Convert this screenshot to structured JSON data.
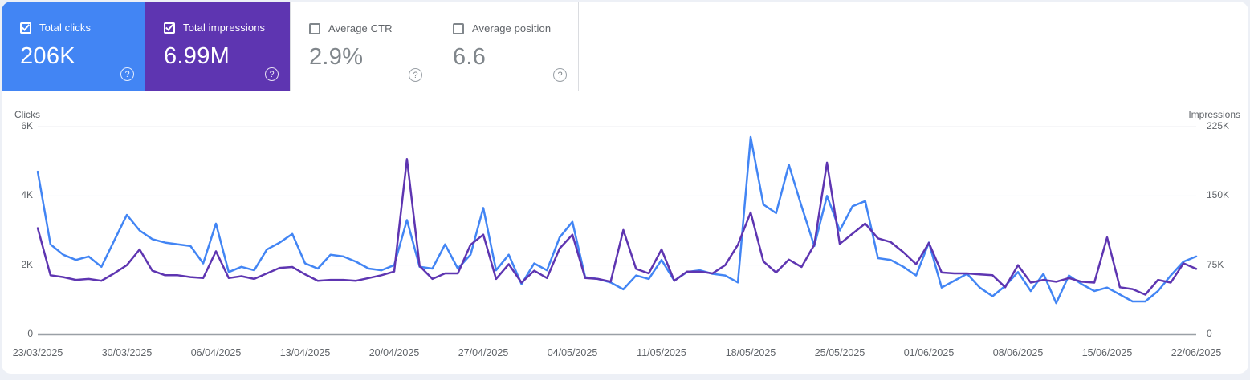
{
  "cards": [
    {
      "label": "Total clicks",
      "value": "206K",
      "checked": true,
      "bg": "#4285f4",
      "text_color": "#ffffff"
    },
    {
      "label": "Total impressions",
      "value": "6.99M",
      "checked": true,
      "bg": "#5e35b1",
      "text_color": "#ffffff"
    },
    {
      "label": "Average CTR",
      "value": "2.9%",
      "checked": false,
      "bg": "#ffffff",
      "text_color": "#80868b"
    },
    {
      "label": "Average position",
      "value": "6.6",
      "checked": false,
      "bg": "#ffffff",
      "text_color": "#80868b"
    }
  ],
  "icons": {
    "help": "?"
  },
  "chart_data": {
    "type": "line",
    "n_points": 92,
    "x_tick_every": 7,
    "x_tick_labels": [
      "23/03/2025",
      "30/03/2025",
      "06/04/2025",
      "13/04/2025",
      "20/04/2025",
      "27/04/2025",
      "04/05/2025",
      "11/05/2025",
      "18/05/2025",
      "25/05/2025",
      "01/06/2025",
      "08/06/2025",
      "15/06/2025",
      "22/06/2025"
    ],
    "left_axis": {
      "title": "Clicks",
      "tick_labels": [
        "6K",
        "4K",
        "2K",
        "0"
      ],
      "range": [
        0,
        6000
      ]
    },
    "right_axis": {
      "title": "Impressions",
      "tick_labels": [
        "225K",
        "150K",
        "75K",
        "0"
      ],
      "range": [
        0,
        225000
      ]
    },
    "grid": "horizontal",
    "legend": "none",
    "series": [
      {
        "name": "Clicks",
        "axis": "left",
        "color": "#4285f4",
        "values": [
          4700,
          2600,
          2300,
          2150,
          2250,
          1950,
          2700,
          3450,
          3000,
          2750,
          2650,
          2600,
          2550,
          2050,
          3200,
          1800,
          1950,
          1850,
          2450,
          2650,
          2900,
          2050,
          1900,
          2300,
          2250,
          2100,
          1900,
          1850,
          2000,
          3300,
          1950,
          1900,
          2600,
          1900,
          2300,
          3650,
          1850,
          2300,
          1450,
          2050,
          1850,
          2800,
          3250,
          1650,
          1600,
          1500,
          1300,
          1700,
          1600,
          2150,
          1550,
          1800,
          1850,
          1750,
          1700,
          1500,
          5700,
          3750,
          3500,
          4900,
          3700,
          2550,
          4000,
          3000,
          3700,
          3850,
          2200,
          2150,
          1950,
          1700,
          2650,
          1350,
          1550,
          1750,
          1350,
          1100,
          1400,
          1800,
          1250,
          1750,
          900,
          1700,
          1450,
          1250,
          1350,
          1150,
          950,
          950,
          1250,
          1700,
          2100,
          2250
        ]
      },
      {
        "name": "Impressions",
        "axis": "right",
        "color": "#5e35b1",
        "values": [
          115000,
          64000,
          62000,
          59000,
          60000,
          58000,
          66000,
          75000,
          92000,
          69000,
          64000,
          64000,
          62000,
          61000,
          90000,
          61000,
          63000,
          60000,
          66000,
          72000,
          73000,
          65000,
          58000,
          59000,
          59000,
          58000,
          61000,
          64000,
          68000,
          190000,
          74000,
          60000,
          66000,
          66000,
          97000,
          108000,
          60000,
          76000,
          56000,
          69000,
          61000,
          93000,
          108000,
          61000,
          60000,
          57000,
          113000,
          71000,
          66000,
          92000,
          58000,
          68000,
          68000,
          66000,
          75000,
          97000,
          132000,
          79000,
          67000,
          81000,
          73000,
          97000,
          186000,
          98000,
          109000,
          120000,
          104000,
          100000,
          89000,
          76000,
          99000,
          67000,
          66000,
          66000,
          65000,
          64000,
          51000,
          75000,
          56000,
          59000,
          57000,
          61000,
          57000,
          56000,
          105000,
          51000,
          49000,
          43000,
          59000,
          56000,
          77000,
          71000
        ]
      }
    ]
  }
}
